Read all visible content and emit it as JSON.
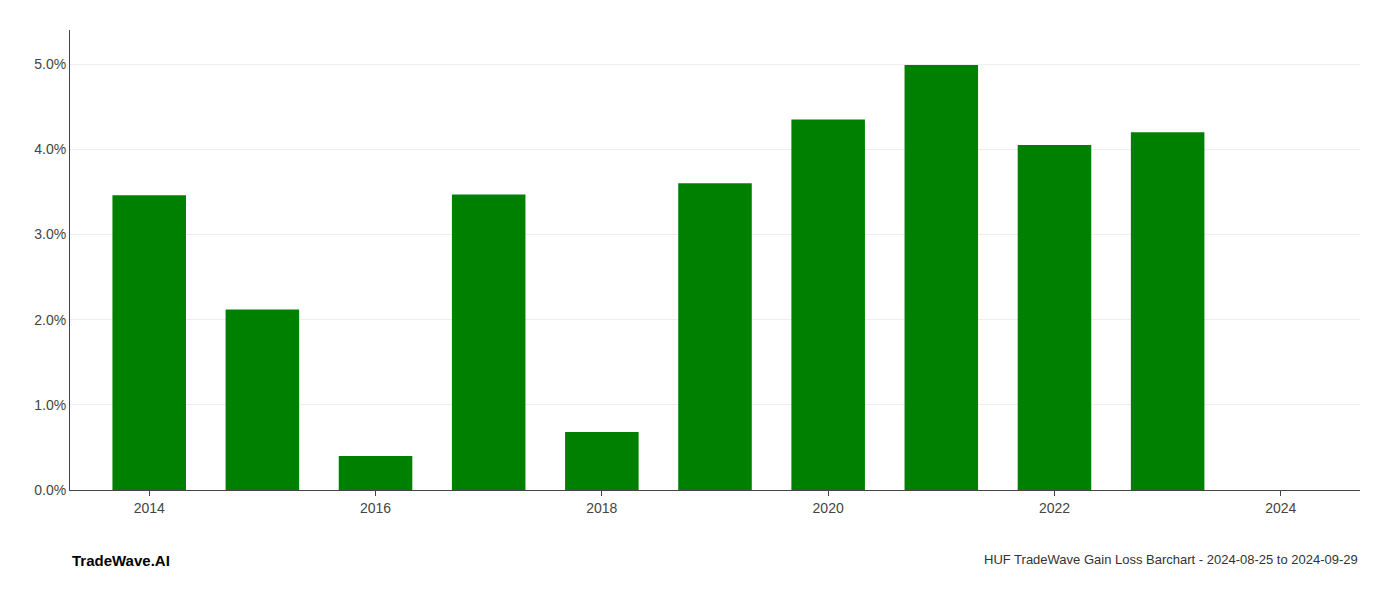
{
  "chart_data": {
    "type": "bar",
    "x": [
      2014,
      2015,
      2016,
      2017,
      2018,
      2019,
      2020,
      2021,
      2022,
      2023
    ],
    "values": [
      0.0346,
      0.0212,
      0.004,
      0.0347,
      0.0068,
      0.036,
      0.0435,
      0.0499,
      0.0405,
      0.042
    ],
    "color": "#008000",
    "xlim": [
      2013.3,
      2024.7
    ],
    "xticks": [
      2014,
      2016,
      2018,
      2020,
      2022,
      2024
    ],
    "ylim": [
      0,
      0.054
    ],
    "yticks": [
      {
        "value": 0.0,
        "label": "0.0%"
      },
      {
        "value": 0.01,
        "label": "1.0%"
      },
      {
        "value": 0.02,
        "label": "2.0%"
      },
      {
        "value": 0.03,
        "label": "3.0%"
      },
      {
        "value": 0.04,
        "label": "4.0%"
      },
      {
        "value": 0.05,
        "label": "5.0%"
      }
    ],
    "grid": true,
    "annotations": [
      "TradeWave.AI",
      "HUF TradeWave Gain Loss Barchart - 2024-08-25 to 2024-09-29"
    ]
  }
}
